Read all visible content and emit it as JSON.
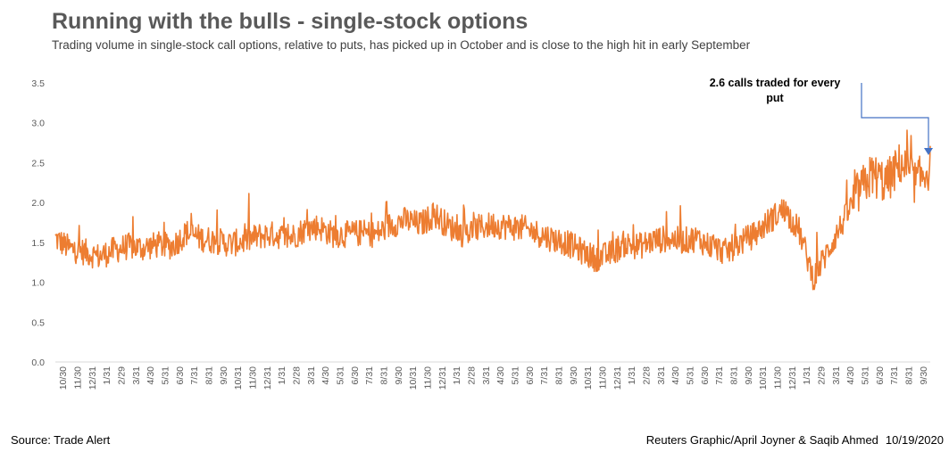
{
  "title": "Running with the bulls - single-stock options",
  "subtitle": "Trading volume in single-stock call options, relative to puts, has picked up in October and is close to the high hit in early September",
  "source": "Source: Trade Alert",
  "credit": "Reuters Graphic/April Joyner & Saqib Ahmed",
  "date": "10/19/2020",
  "colors": {
    "line": "#ED7D31",
    "annotation_arrow": "#4472C4",
    "axis": "#D9D9D9"
  },
  "chart_data": {
    "type": "line",
    "title": "Running with the bulls - single-stock options",
    "ylim": [
      0,
      3.5
    ],
    "y_ticks": [
      "0.0",
      "0.5",
      "1.0",
      "1.5",
      "2.0",
      "2.5",
      "3.0",
      "3.5"
    ],
    "x_ticks": [
      "10/30",
      "11/30",
      "12/31",
      "1/31",
      "2/29",
      "3/31",
      "4/30",
      "5/31",
      "6/30",
      "7/31",
      "8/31",
      "9/30",
      "10/31",
      "11/30",
      "12/31",
      "1/31",
      "2/28",
      "3/31",
      "4/30",
      "5/31",
      "6/30",
      "7/31",
      "8/31",
      "9/30",
      "10/31",
      "11/30",
      "12/31",
      "1/31",
      "2/28",
      "3/31",
      "4/30",
      "5/31",
      "6/30",
      "7/31",
      "8/31",
      "9/30",
      "10/31",
      "11/30",
      "12/31",
      "1/31",
      "2/28",
      "3/31",
      "4/30",
      "5/31",
      "6/30",
      "7/31",
      "8/31",
      "9/30",
      "10/31",
      "11/30",
      "12/31",
      "1/31",
      "2/29",
      "3/31",
      "4/30",
      "5/31",
      "6/30",
      "7/31",
      "8/31",
      "9/30"
    ],
    "series": [
      {
        "monthly_values": [
          1.55,
          1.42,
          1.38,
          1.32,
          1.4,
          1.45,
          1.43,
          1.47,
          1.45,
          1.62,
          1.55,
          1.52,
          1.48,
          1.52,
          1.58,
          1.6,
          1.55,
          1.65,
          1.7,
          1.6,
          1.6,
          1.62,
          1.6,
          1.72,
          1.78,
          1.72,
          1.85,
          1.7,
          1.6,
          1.68,
          1.72,
          1.7,
          1.68,
          1.62,
          1.55,
          1.5,
          1.4,
          1.3,
          1.35,
          1.48,
          1.45,
          1.52,
          1.55,
          1.52,
          1.55,
          1.45,
          1.38,
          1.5,
          1.6,
          1.78,
          1.92,
          1.65,
          1.05,
          1.4,
          1.75,
          2.1,
          2.35,
          2.25,
          2.5,
          2.25,
          2.45
        ]
      }
    ],
    "annotation": "2.6 calls traded for every put"
  }
}
